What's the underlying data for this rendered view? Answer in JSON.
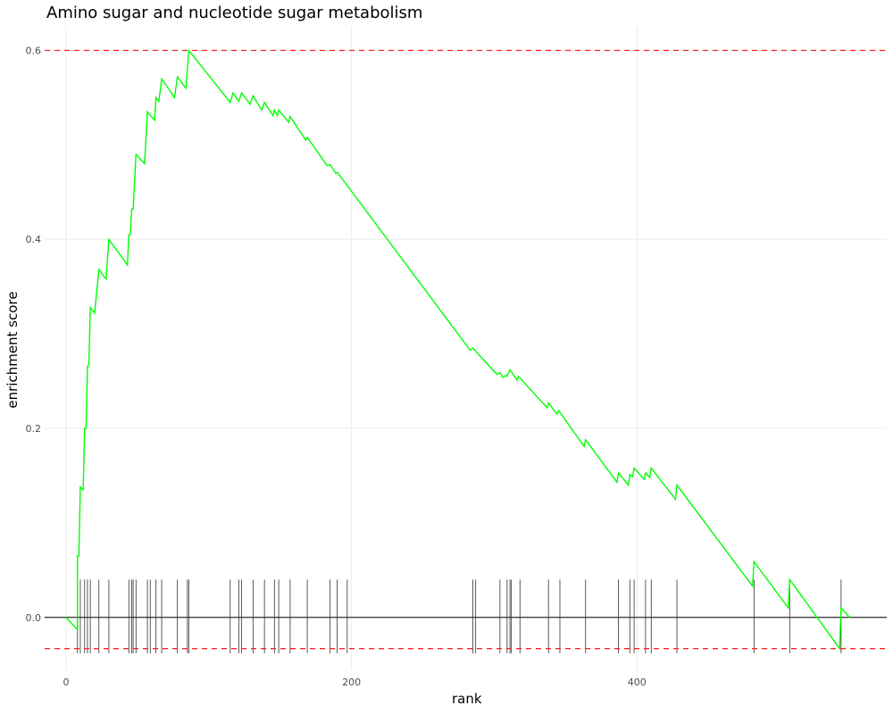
{
  "chart_data": {
    "type": "line",
    "title": "Amino sugar and nucleotide sugar metabolism",
    "xlabel": "rank",
    "ylabel": "enrichment score",
    "xlim": [
      -15,
      575
    ],
    "ylim": [
      -0.055,
      0.625
    ],
    "x_ticks": [
      0,
      200,
      400
    ],
    "x_tick_labels": [
      "0",
      "200",
      "400"
    ],
    "y_ticks": [
      0.0,
      0.2,
      0.4,
      0.6
    ],
    "y_tick_labels": [
      "0.0",
      "0.2",
      "0.4",
      "0.6"
    ],
    "grid": true,
    "max_es": 0.6,
    "min_es": -0.033,
    "series": [
      {
        "color": "#00ff00",
        "points": [
          [
            0,
            0.0
          ],
          [
            8,
            -0.013
          ],
          [
            8,
            0.065
          ],
          [
            9,
            0.065
          ],
          [
            10,
            0.138
          ],
          [
            12,
            0.135
          ],
          [
            13,
            0.2
          ],
          [
            14,
            0.2
          ],
          [
            15,
            0.265
          ],
          [
            16,
            0.268
          ],
          [
            17,
            0.328
          ],
          [
            20,
            0.322
          ],
          [
            23,
            0.368
          ],
          [
            28,
            0.358
          ],
          [
            30,
            0.4
          ],
          [
            43,
            0.373
          ],
          [
            44,
            0.405
          ],
          [
            45,
            0.405
          ],
          [
            46,
            0.432
          ],
          [
            47,
            0.432
          ],
          [
            49,
            0.49
          ],
          [
            55,
            0.48
          ],
          [
            57,
            0.535
          ],
          [
            62,
            0.526
          ],
          [
            63,
            0.55
          ],
          [
            65,
            0.546
          ],
          [
            67,
            0.57
          ],
          [
            76,
            0.55
          ],
          [
            78,
            0.572
          ],
          [
            84,
            0.56
          ],
          [
            86,
            0.6
          ],
          [
            115,
            0.545
          ],
          [
            117,
            0.555
          ],
          [
            121,
            0.546
          ],
          [
            123,
            0.555
          ],
          [
            129,
            0.543
          ],
          [
            131,
            0.552
          ],
          [
            137,
            0.537
          ],
          [
            139,
            0.545
          ],
          [
            145,
            0.531
          ],
          [
            146,
            0.537
          ],
          [
            148,
            0.531
          ],
          [
            149,
            0.537
          ],
          [
            156,
            0.524
          ],
          [
            157,
            0.53
          ],
          [
            168,
            0.505
          ],
          [
            169,
            0.508
          ],
          [
            183,
            0.478
          ],
          [
            185,
            0.479
          ],
          [
            189,
            0.47
          ],
          [
            190,
            0.471
          ],
          [
            196,
            0.459
          ],
          [
            283,
            0.283
          ],
          [
            285,
            0.285
          ],
          [
            302,
            0.257
          ],
          [
            304,
            0.259
          ],
          [
            306,
            0.254
          ],
          [
            308,
            0.256
          ],
          [
            309,
            0.255
          ],
          [
            311,
            0.262
          ],
          [
            316,
            0.251
          ],
          [
            317,
            0.255
          ],
          [
            337,
            0.222
          ],
          [
            338,
            0.227
          ],
          [
            344,
            0.215
          ],
          [
            345,
            0.219
          ],
          [
            363,
            0.181
          ],
          [
            364,
            0.188
          ],
          [
            386,
            0.143
          ],
          [
            387,
            0.153
          ],
          [
            394,
            0.14
          ],
          [
            395,
            0.151
          ],
          [
            397,
            0.149
          ],
          [
            398,
            0.158
          ],
          [
            405,
            0.146
          ],
          [
            406,
            0.153
          ],
          [
            409,
            0.148
          ],
          [
            410,
            0.158
          ],
          [
            427,
            0.125
          ],
          [
            428,
            0.14
          ],
          [
            481,
            0.033
          ],
          [
            482,
            0.059
          ],
          [
            506,
            0.01
          ],
          [
            507,
            0.04
          ],
          [
            542,
            -0.033
          ],
          [
            543,
            0.01
          ],
          [
            549,
            0.0
          ]
        ]
      }
    ],
    "hit_ranks": [
      8,
      10,
      13,
      15,
      17,
      23,
      30,
      44,
      46,
      47,
      49,
      57,
      59,
      63,
      67,
      78,
      85,
      86,
      115,
      121,
      123,
      131,
      139,
      146,
      149,
      157,
      169,
      185,
      190,
      197,
      285,
      287,
      304,
      309,
      311,
      312,
      318,
      338,
      346,
      364,
      387,
      395,
      398,
      406,
      410,
      428,
      482,
      507,
      543
    ]
  }
}
